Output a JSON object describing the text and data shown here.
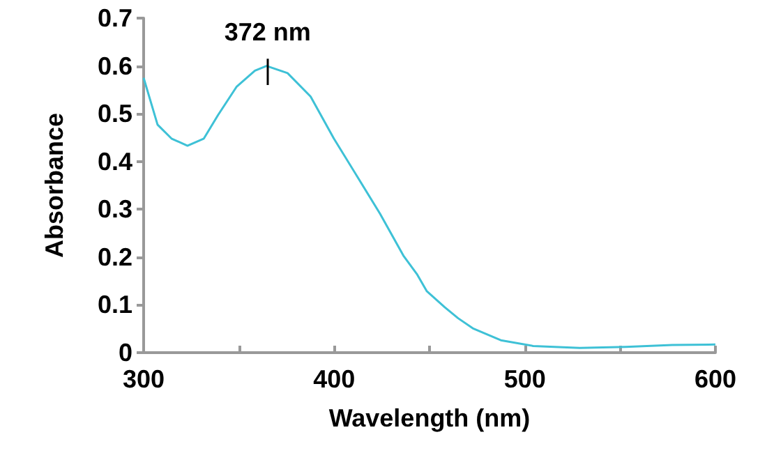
{
  "chart_data": {
    "type": "line",
    "xlabel": "Wavelength (nm)",
    "ylabel": "Absorbance",
    "x": [
      300,
      307.3,
      314.6,
      323,
      331.6,
      339,
      348.7,
      358.4,
      364.5,
      375.5,
      387.6,
      399.8,
      412,
      424,
      436.3,
      443.6,
      448.5,
      458,
      465,
      472.7,
      487.4,
      504.4,
      528.8,
      553,
      577.4,
      600
    ],
    "series": [
      {
        "color": "#3ec1d6",
        "values": [
          0.575,
          0.477,
          0.448,
          0.433,
          0.448,
          0.497,
          0.556,
          0.59,
          0.6,
          0.585,
          0.536,
          0.448,
          0.369,
          0.291,
          0.203,
          0.163,
          0.129,
          0.095,
          0.072,
          0.051,
          0.026,
          0.014,
          0.01,
          0.012,
          0.016,
          0.017
        ]
      }
    ],
    "xlim": [
      300,
      600
    ],
    "xticks": [
      300,
      {
        "value": 350,
        "label": null
      },
      400,
      {
        "value": 450,
        "label": null
      },
      500,
      {
        "value": 550,
        "label": null
      },
      600
    ],
    "ylim": [
      0,
      0.7
    ],
    "yticks": [
      0,
      0.1,
      0.2,
      0.3,
      0.4,
      0.5,
      0.6,
      0.7
    ],
    "annotations": [
      {
        "text": "372 nm",
        "x": 365,
        "y": 0.6
      }
    ]
  }
}
